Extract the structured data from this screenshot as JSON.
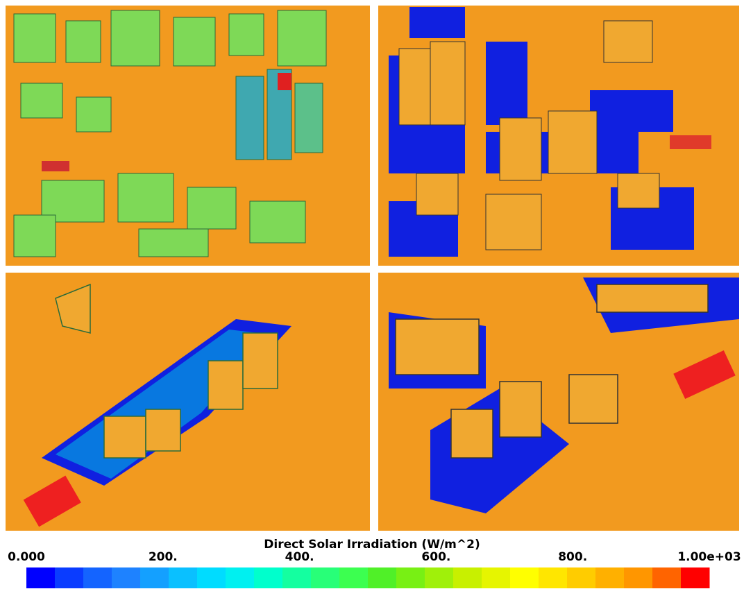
{
  "colorbar": {
    "title": "Direct Solar Irradiation (W/m^2)",
    "clim": [
      0,
      1000
    ],
    "ticks": [
      {
        "value": 0,
        "label": "0.000"
      },
      {
        "value": 200,
        "label": "200."
      },
      {
        "value": 400,
        "label": "400."
      },
      {
        "value": 600,
        "label": "600."
      },
      {
        "value": 800,
        "label": "800."
      },
      {
        "value": 1000,
        "label": "1.00e+03"
      }
    ],
    "colors": [
      "#0000ff",
      "#0a3cff",
      "#1464ff",
      "#1e82ff",
      "#14a0ff",
      "#0ac0ff",
      "#00dcff",
      "#00f0f0",
      "#00ffcc",
      "#14ffa0",
      "#28ff78",
      "#3cff50",
      "#50f028",
      "#78f014",
      "#a0f00a",
      "#c8f000",
      "#e6f500",
      "#ffff00",
      "#ffe600",
      "#ffcc00",
      "#ffb000",
      "#ff9600",
      "#ff6400",
      "#ff0000"
    ]
  }
}
